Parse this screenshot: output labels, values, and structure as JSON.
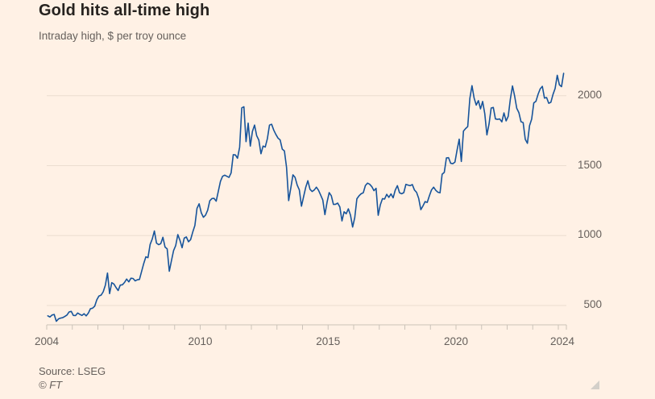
{
  "header": {
    "title": "Gold hits all-time high",
    "subtitle": "Intraday high, $ per troy ounce"
  },
  "footer": {
    "source": "Source: LSEG",
    "copyright": "© FT"
  },
  "colors": {
    "background": "#FFF1E5",
    "line": "#17549B",
    "gridline": "#EBDDD0",
    "axis": "#CBC2B8",
    "muted_text": "#66605C",
    "title_text": "#26221F"
  },
  "chart_data": {
    "type": "line",
    "title": "Gold hits all-time high",
    "subtitle": "Intraday high, $ per troy ounce",
    "ylabel": "$ per troy ounce",
    "grid": "horizontal",
    "legend": "none",
    "x_axis": {
      "range": [
        2004,
        2024.3
      ],
      "tick_interval_years": 1,
      "label_years": [
        2004,
        2010,
        2015,
        2020,
        2024
      ],
      "tick_labels": [
        "2004",
        "2010",
        "2015",
        "2020",
        "2024"
      ]
    },
    "y_axis": {
      "range": [
        362,
        2240
      ],
      "ticks": [
        500,
        1000,
        1500,
        2000
      ],
      "tick_labels": [
        "500",
        "1000",
        "1500",
        "2000"
      ],
      "side": "right"
    },
    "series": [
      {
        "name": "Gold intraday high ($/troy oz)",
        "resolution": "monthly",
        "monthly_high_usd": {
          "2004": [
            426,
            418,
            432,
            436,
            387,
            404,
            410,
            413,
            422,
            432,
            454,
            458
          ],
          "2005": [
            429,
            428,
            446,
            437,
            429,
            441,
            426,
            445,
            477,
            481,
            495,
            541
          ],
          "2006": [
            568,
            574,
            598,
            645,
            732,
            585,
            663,
            654,
            629,
            607,
            646,
            648
          ],
          "2007": [
            665,
            689,
            669,
            695,
            693,
            676,
            684,
            686,
            743,
            800,
            848,
            842
          ],
          "2008": [
            936,
            975,
            1033,
            946,
            935,
            942,
            988,
            918,
            905,
            745,
            820,
            892
          ],
          "2009": [
            928,
            1007,
            966,
            913,
            982,
            990,
            956,
            971,
            1025,
            1072,
            1195,
            1227
          ],
          "2010": [
            1163,
            1131,
            1146,
            1181,
            1249,
            1265,
            1266,
            1246,
            1317,
            1388,
            1424,
            1432
          ],
          "2011": [
            1424,
            1416,
            1448,
            1578,
            1577,
            1553,
            1632,
            1913,
            1921,
            1672,
            1804,
            1640
          ],
          "2012": [
            1745,
            1790,
            1714,
            1683,
            1585,
            1640,
            1633,
            1692,
            1790,
            1796,
            1754,
            1723
          ],
          "2013": [
            1697,
            1684,
            1618,
            1605,
            1488,
            1250,
            1340,
            1434,
            1416,
            1361,
            1327,
            1210
          ],
          "2014": [
            1278,
            1345,
            1392,
            1331,
            1315,
            1326,
            1346,
            1324,
            1290,
            1255,
            1150,
            1238
          ],
          "2015": [
            1307,
            1285,
            1223,
            1224,
            1232,
            1205,
            1105,
            1170,
            1156,
            1191,
            1146,
            1061
          ],
          "2016": [
            1128,
            1263,
            1284,
            1299,
            1306,
            1358,
            1375,
            1367,
            1350,
            1321,
            1338,
            1145
          ],
          "2017": [
            1220,
            1264,
            1261,
            1295,
            1273,
            1298,
            1270,
            1325,
            1357,
            1306,
            1299,
            1307
          ],
          "2018": [
            1366,
            1361,
            1357,
            1365,
            1326,
            1309,
            1266,
            1185,
            1212,
            1243,
            1237,
            1284
          ],
          "2019": [
            1326,
            1346,
            1324,
            1310,
            1306,
            1439,
            1452,
            1555,
            1557,
            1517,
            1514,
            1525
          ],
          "2020": [
            1611,
            1689,
            1530,
            1747,
            1765,
            1779,
            1981,
            2072,
            1983,
            1933,
            1965,
            1906
          ],
          "2021": [
            1959,
            1871,
            1720,
            1798,
            1912,
            1916,
            1834,
            1831,
            1834,
            1813,
            1877,
            1820
          ],
          "2022": [
            1853,
            1976,
            2070,
            1998,
            1910,
            1879,
            1814,
            1808,
            1688,
            1660,
            1786,
            1833
          ],
          "2023": [
            1949,
            1960,
            2010,
            2049,
            2067,
            1983,
            1987,
            1946,
            1953,
            2009,
            2052,
            2146
          ],
          "2024": [
            2078,
            2065,
            2160
          ]
        }
      }
    ]
  }
}
